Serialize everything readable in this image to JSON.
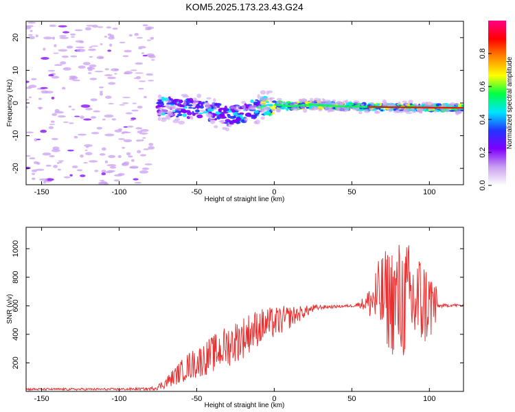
{
  "title": "KOM5.2025.173.23.43.G24",
  "chart_data": [
    {
      "type": "heatmap",
      "xlabel": "Height of straight line (km)",
      "ylabel": "Frequency (Hz)",
      "xlim": [
        -160,
        122
      ],
      "ylim": [
        -25,
        25
      ],
      "xticks": [
        -150,
        -100,
        -50,
        0,
        50,
        100
      ],
      "yticks": [
        -20,
        -10,
        0,
        10,
        20
      ],
      "colorbar": {
        "label": "Normalized spectral amplitude",
        "range": [
          0,
          1
        ],
        "ticks": [
          0.0,
          0.2,
          0.4,
          0.6,
          0.8
        ],
        "colormap": [
          "#ffffff",
          "#c9a0f0",
          "#7f00ff",
          "#2233ff",
          "#00e5ff",
          "#00ff44",
          "#ffff00",
          "#ff8800",
          "#ff0000",
          "#ff0088"
        ]
      },
      "trace": {
        "x": [
          -75,
          -60,
          -45,
          -30,
          -20,
          -10,
          0,
          10,
          25,
          40,
          60,
          80,
          100,
          122
        ],
        "y": [
          -1.0,
          -1.5,
          -2.0,
          -4.0,
          -3.0,
          -1.5,
          -0.5,
          -1.0,
          -0.5,
          -1.0,
          -1.2,
          -1.3,
          -1.4,
          -1.5
        ]
      },
      "noise_region": {
        "x": [
          -160,
          -78
        ],
        "y": [
          -25,
          25
        ]
      }
    },
    {
      "type": "line",
      "xlabel": "Height of straight line (km)",
      "ylabel": "SNR (v/v)",
      "xlim": [
        -160,
        122
      ],
      "ylim": [
        0,
        1150
      ],
      "xticks": [
        -150,
        -100,
        -50,
        0,
        50,
        100
      ],
      "yticks": [
        200,
        400,
        600,
        800,
        1000
      ],
      "color": "#e83030",
      "series": [
        {
          "name": "",
          "x": [
            -160,
            -140,
            -120,
            -100,
            -80,
            -75,
            -70,
            -65,
            -60,
            -55,
            -50,
            -45,
            -40,
            -35,
            -30,
            -25,
            -20,
            -15,
            -10,
            -5,
            0,
            5,
            10,
            15,
            20,
            25,
            30,
            40,
            50,
            55,
            60,
            65,
            70,
            75,
            80,
            85,
            90,
            95,
            100,
            104,
            105,
            110,
            115,
            122
          ],
          "y": [
            15,
            15,
            15,
            15,
            18,
            30,
            60,
            100,
            140,
            180,
            200,
            230,
            260,
            290,
            320,
            350,
            380,
            420,
            450,
            470,
            480,
            500,
            520,
            540,
            560,
            580,
            590,
            595,
            600,
            610,
            620,
            650,
            660,
            650,
            620,
            640,
            630,
            620,
            610,
            610,
            600,
            600,
            605,
            600
          ],
          "amplitude": [
            8,
            8,
            8,
            8,
            10,
            20,
            40,
            60,
            80,
            100,
            110,
            120,
            130,
            140,
            150,
            150,
            150,
            140,
            130,
            120,
            110,
            100,
            80,
            60,
            40,
            30,
            15,
            10,
            10,
            20,
            80,
            220,
            320,
            380,
            450,
            420,
            400,
            350,
            260,
            250,
            15,
            12,
            10,
            10
          ]
        }
      ]
    }
  ]
}
